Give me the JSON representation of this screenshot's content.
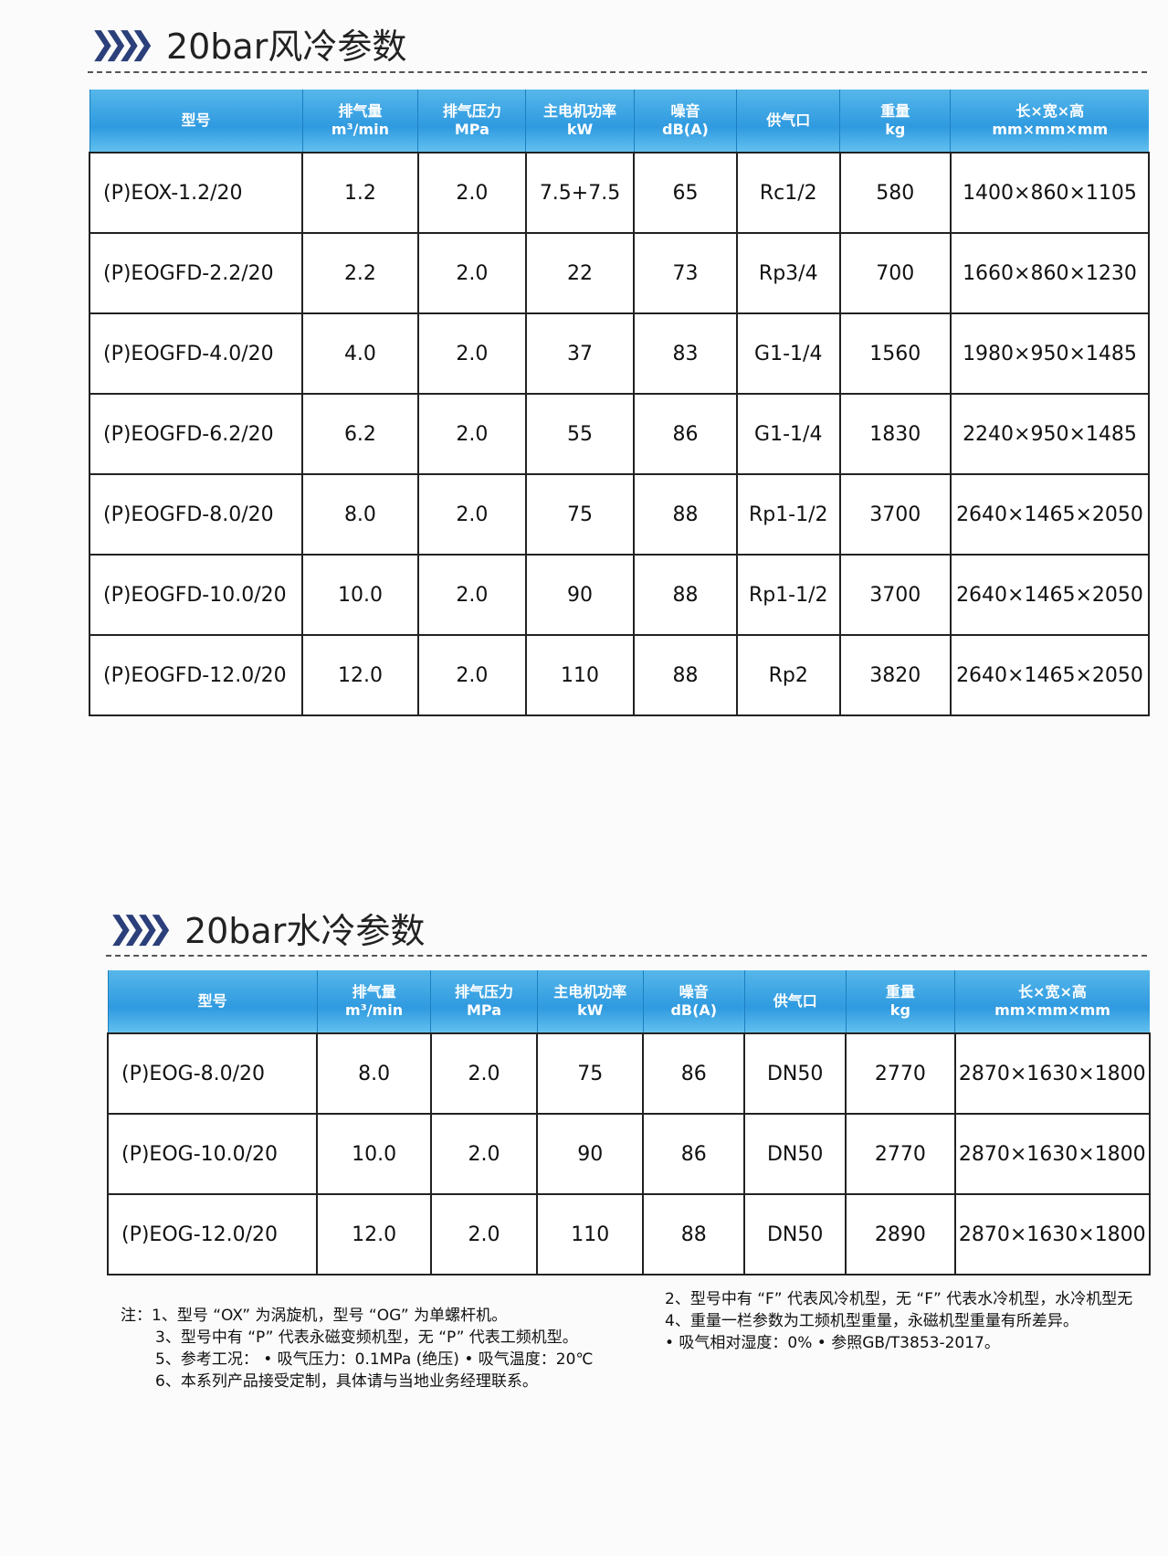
{
  "air": {
    "title": "20bar风冷参数",
    "headers": [
      {
        "l1": "型号",
        "l2": ""
      },
      {
        "l1": "排气量",
        "l2": "m³/min"
      },
      {
        "l1": "排气压力",
        "l2": "MPa"
      },
      {
        "l1": "主电机功率",
        "l2": "kW"
      },
      {
        "l1": "噪音",
        "l2": "dB(A)"
      },
      {
        "l1": "供气口",
        "l2": ""
      },
      {
        "l1": "重量",
        "l2": "kg"
      },
      {
        "l1": "长×宽×高",
        "l2": "mm×mm×mm"
      }
    ],
    "rows": [
      [
        "(P)EOX-1.2/20",
        "1.2",
        "2.0",
        "7.5+7.5",
        "65",
        "Rc1/2",
        "580",
        "1400×860×1105"
      ],
      [
        "(P)EOGFD-2.2/20",
        "2.2",
        "2.0",
        "22",
        "73",
        "Rp3/4",
        "700",
        "1660×860×1230"
      ],
      [
        "(P)EOGFD-4.0/20",
        "4.0",
        "2.0",
        "37",
        "83",
        "G1-1/4",
        "1560",
        "1980×950×1485"
      ],
      [
        "(P)EOGFD-6.2/20",
        "6.2",
        "2.0",
        "55",
        "86",
        "G1-1/4",
        "1830",
        "2240×950×1485"
      ],
      [
        "(P)EOGFD-8.0/20",
        "8.0",
        "2.0",
        "75",
        "88",
        "Rp1-1/2",
        "3700",
        "2640×1465×2050"
      ],
      [
        "(P)EOGFD-10.0/20",
        "10.0",
        "2.0",
        "90",
        "88",
        "Rp1-1/2",
        "3700",
        "2640×1465×2050"
      ],
      [
        "(P)EOGFD-12.0/20",
        "12.0",
        "2.0",
        "110",
        "88",
        "Rp2",
        "3820",
        "2640×1465×2050"
      ]
    ]
  },
  "water": {
    "title": "20bar水冷参数",
    "headers": [
      {
        "l1": "型号",
        "l2": ""
      },
      {
        "l1": "排气量",
        "l2": "m³/min"
      },
      {
        "l1": "排气压力",
        "l2": "MPa"
      },
      {
        "l1": "主电机功率",
        "l2": "kW"
      },
      {
        "l1": "噪音",
        "l2": "dB(A)"
      },
      {
        "l1": "供气口",
        "l2": ""
      },
      {
        "l1": "重量",
        "l2": "kg"
      },
      {
        "l1": "长×宽×高",
        "l2": "mm×mm×mm"
      }
    ],
    "rows": [
      [
        "(P)EOG-8.0/20",
        "8.0",
        "2.0",
        "75",
        "86",
        "DN50",
        "2770",
        "2870×1630×1800"
      ],
      [
        "(P)EOG-10.0/20",
        "10.0",
        "2.0",
        "90",
        "86",
        "DN50",
        "2770",
        "2870×1630×1800"
      ],
      [
        "(P)EOG-12.0/20",
        "12.0",
        "2.0",
        "110",
        "88",
        "DN50",
        "2890",
        "2870×1630×1800"
      ]
    ]
  },
  "notes": {
    "left": [
      "注：1、型号 “OX” 为涡旋机，型号 “OG” 为单螺杆机。",
      "3、型号中有 “P” 代表永磁变频机型，无 “P” 代表工频机型。",
      "5、参考工况： • 吸气压力：0.1MPa (绝压)   • 吸气温度：20℃",
      "6、本系列产品接受定制，具体请与当地业务经理联系。"
    ],
    "right": [
      "2、型号中有 “F” 代表风冷机型，无 “F” 代表水冷机型，水冷机型无",
      "4、重量一栏参数为工频机型重量，永磁机型重量有所差异。",
      "• 吸气相对湿度：0%     • 参照GB/T3853-2017。"
    ]
  }
}
